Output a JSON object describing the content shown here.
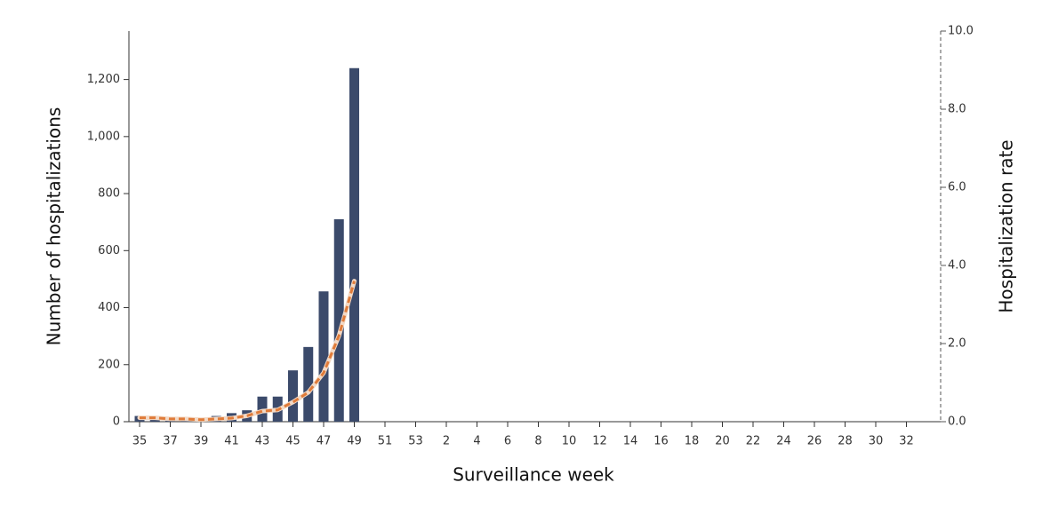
{
  "chart_data": {
    "type": "bar",
    "x_label": "Surveillance week",
    "y_label": "Number of hospitalizations",
    "y2_label": "Hospitalization rate",
    "categories": [
      "35",
      null,
      "37",
      null,
      "39",
      null,
      "41",
      null,
      "43",
      null,
      "45",
      null,
      "47",
      null,
      "49",
      null,
      "51",
      null,
      "53",
      null,
      "2",
      null,
      "4",
      null,
      "6",
      null,
      "8",
      null,
      "10",
      null,
      "12",
      null,
      "14",
      null,
      "16",
      null,
      "18",
      null,
      "20",
      null,
      "22",
      null,
      "24",
      null,
      "26",
      null,
      "28",
      null,
      "30",
      null,
      "32",
      null
    ],
    "series": [
      {
        "name": "Number of hospitalizations",
        "color": "#3b4a6b",
        "values": [
          20,
          10,
          15,
          15,
          10,
          20,
          30,
          40,
          88,
          88,
          180,
          262,
          457,
          710,
          1240,
          null,
          null,
          null,
          null,
          null,
          null,
          null,
          null,
          null,
          null,
          null,
          null,
          null,
          null,
          null,
          null,
          null,
          null,
          null,
          null,
          null,
          null,
          null,
          null,
          null,
          null,
          null,
          null,
          null,
          null,
          null,
          null,
          null,
          null,
          null,
          null,
          null
        ]
      },
      {
        "name": "Hospitalization rate",
        "color": "#e07b39",
        "axis": "y2",
        "values": [
          0.1,
          0.1,
          0.07,
          0.07,
          0.05,
          0.07,
          0.09,
          0.15,
          0.27,
          0.3,
          0.5,
          0.75,
          1.25,
          2.2,
          3.6,
          null,
          null,
          null,
          null,
          null,
          null,
          null,
          null,
          null,
          null,
          null,
          null,
          null,
          null,
          null,
          null,
          null,
          null,
          null,
          null,
          null,
          null,
          null,
          null,
          null,
          null,
          null,
          null,
          null,
          null,
          null,
          null,
          null,
          null,
          null,
          null,
          null
        ]
      }
    ],
    "ylim": [
      0,
      1370
    ],
    "yticks": [
      0,
      200,
      400,
      600,
      800,
      {
        "value": 1000,
        "label": "1,000"
      },
      {
        "value": 1200,
        "label": "1,200"
      }
    ],
    "y2lim": [
      0,
      10
    ],
    "y2ticks": [
      {
        "value": 0,
        "label": "0.0"
      },
      {
        "value": 2,
        "label": "2.0"
      },
      {
        "value": 4,
        "label": "4.0"
      },
      {
        "value": 6,
        "label": "6.0"
      },
      {
        "value": 8,
        "label": "8.0"
      },
      {
        "value": 10,
        "label": "10.0"
      }
    ]
  }
}
